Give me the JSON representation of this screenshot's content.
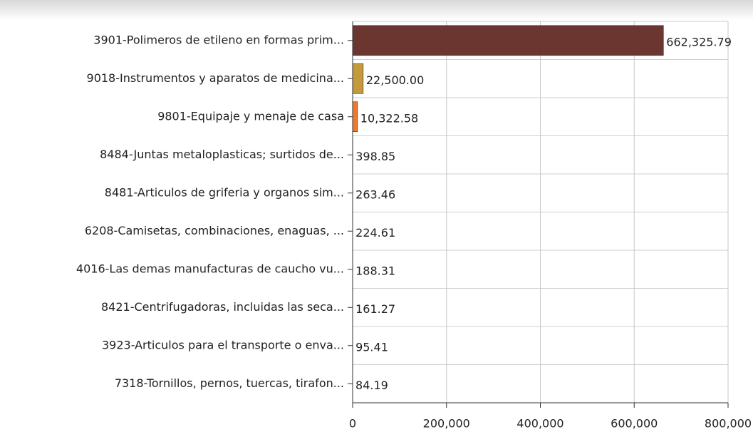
{
  "chart_data": {
    "type": "barh",
    "categories": [
      "3901-Polimeros de etileno en formas prim...",
      "9018-Instrumentos y aparatos de medicina...",
      "9801-Equipaje y menaje de casa",
      "8484-Juntas metaloplasticas; surtidos de...",
      "8481-Articulos de griferia y organos sim...",
      "6208-Camisetas, combinaciones, enaguas, ...",
      "4016-Las demas manufacturas de caucho vu...",
      "8421-Centrifugadoras, incluidas las seca...",
      "3923-Articulos para el transporte o enva...",
      "7318-Tornillos, pernos, tuercas, tirafon..."
    ],
    "values": [
      662325.79,
      22500,
      10322.58,
      398.85,
      263.46,
      224.61,
      188.31,
      161.27,
      95.41,
      84.19
    ],
    "value_labels": [
      "662,325.79",
      "22,500.00",
      "10,322.58",
      "398.85",
      "263.46",
      "224.61",
      "188.31",
      "161.27",
      "95.41",
      "84.19"
    ],
    "colors": [
      "#6b3530",
      "#c49a3c",
      "#f07a2c",
      "#8a8a8a",
      "#8a8a8a",
      "#8a8a8a",
      "#8a8a8a",
      "#8a8a8a",
      "#8a8a8a",
      "#8a8a8a"
    ],
    "xlim": [
      0,
      800000
    ],
    "xticks": [
      0,
      {
        "value": 200000,
        "label": "200,000"
      },
      {
        "value": 400000,
        "label": "400,000"
      },
      {
        "value": 600000,
        "label": "600,000"
      },
      {
        "value": 800000,
        "label": "800,000"
      }
    ],
    "grid": true
  }
}
